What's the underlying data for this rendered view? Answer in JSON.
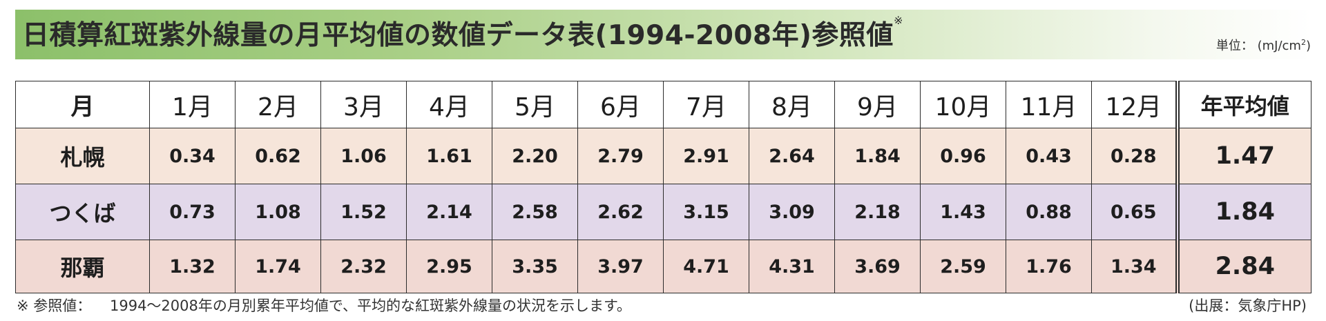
{
  "title": {
    "text": "日積算紅斑紫外線量の月平均値の数値データ表(1994-2008年)参照値",
    "note_mark": "※"
  },
  "unit": {
    "label": "単位：",
    "value": "(mJ/cm",
    "sup": "2",
    "close": ")"
  },
  "table": {
    "header_month": "月",
    "months": [
      "1月",
      "2月",
      "3月",
      "4月",
      "5月",
      "6月",
      "7月",
      "8月",
      "9月",
      "10月",
      "11月",
      "12月"
    ],
    "header_avg": "年平均値",
    "rows": [
      {
        "city": "札幌",
        "values": [
          "0.34",
          "0.62",
          "1.06",
          "1.61",
          "2.20",
          "2.79",
          "2.91",
          "2.64",
          "1.84",
          "0.96",
          "0.43",
          "0.28"
        ],
        "avg": "1.47"
      },
      {
        "city": "つくば",
        "values": [
          "0.73",
          "1.08",
          "1.52",
          "2.14",
          "2.58",
          "2.62",
          "3.15",
          "3.09",
          "2.18",
          "1.43",
          "0.88",
          "0.65"
        ],
        "avg": "1.84"
      },
      {
        "city": "那覇",
        "values": [
          "1.32",
          "1.74",
          "2.32",
          "2.95",
          "3.35",
          "3.97",
          "4.71",
          "4.31",
          "3.69",
          "2.59",
          "1.76",
          "1.34"
        ],
        "avg": "2.84"
      }
    ]
  },
  "footnote": {
    "mark": "※ 参照値：",
    "text": "1994～2008年の月別累年平均値で、平均的な紅斑紫外線量の状況を示します。"
  },
  "source": "(出展：気象庁HP)"
}
